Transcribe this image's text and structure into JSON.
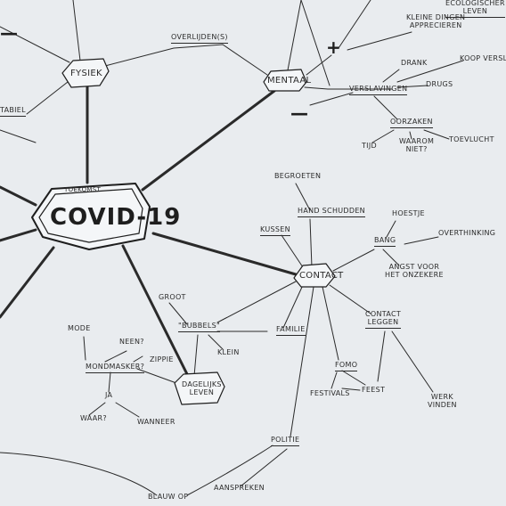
{
  "mindmap": {
    "center": "COVID-19",
    "center_tag": "TOEKOMST",
    "nodes": {
      "fysiek": "FYSIEK",
      "mentaal": "MENTAAL",
      "contact": "CONTACT",
      "dagelijks": "DAGELIJKS\nLEVEN",
      "stabiel": "TABIEL",
      "overlijden": "OVERLIJDEN(S)",
      "ecologisch": "ECOLOGISCHER\nLEVEN",
      "kleine": "KLEINE DINGEN\nAPPRECIEREN",
      "plus": "+",
      "minus": "—",
      "dash_top_left": "—",
      "drank": "DRANK",
      "koopverslaving": "KOOP VERSLAVIN",
      "verslavingen": "VERSLAVINGEN",
      "drugs": "DRUGS",
      "oorzaken": "OORZAKEN",
      "tijd": "TIJD",
      "waarom_niet": "WAAROM\nNIET?",
      "toevlucht": "TOEVLUCHT",
      "begroeten": "BEGROETEN",
      "kussen": "KUSSEN",
      "handschudden": "HAND SCHUDDEN",
      "bang": "BANG",
      "hoestje": "HOESTJE",
      "overthinking": "OVERTHINKING",
      "angst": "ANGST VOOR\nHET ONZEKERE",
      "familie": "FAMILIE",
      "bubbels": "\"BUBBELS\"",
      "groot": "GROOT",
      "klein": "KLEIN",
      "contact_leggen": "CONTACT\nLEGGEN",
      "fomo": "FOMO",
      "festivals": "FESTIVALS",
      "feest": "FEEST",
      "werk_vinden": "WERK\nVINDEN",
      "mode": "MODE",
      "mondmasker": "MONDMASKER?",
      "neen": "NEEN?",
      "zippie": "ZIPPIE",
      "ja": "JA",
      "waar": "WAAR?",
      "wanneer": "WANNEER",
      "politie": "POLITIE",
      "blauw": "BLAUW OP",
      "aanspreken": "AANSPREKEN"
    }
  },
  "colors": {
    "ink": "#1e1e1e",
    "paper": "#e9ecef"
  }
}
